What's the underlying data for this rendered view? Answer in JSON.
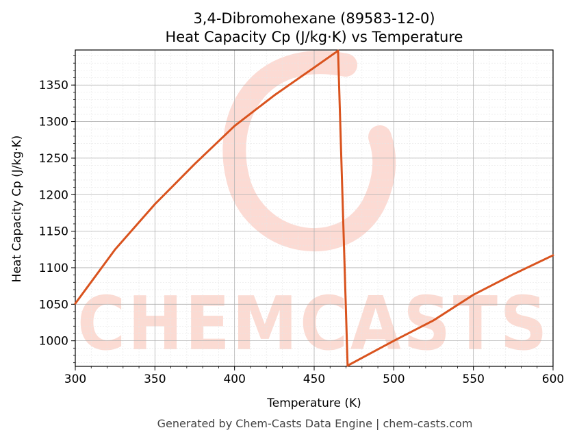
{
  "chart_data": {
    "type": "line",
    "title": "3,4-Dibromohexane (89583-12-0)",
    "subtitle": "Heat Capacity Cp (J/kg·K) vs Temperature",
    "xlabel": "Temperature (K)",
    "ylabel": "Heat Capacity Cp (J/kg·K)",
    "xlim": [
      300,
      600
    ],
    "ylim": [
      965,
      1398
    ],
    "x_ticks": [
      300,
      350,
      400,
      450,
      500,
      550,
      600
    ],
    "y_ticks": [
      1000,
      1050,
      1100,
      1150,
      1200,
      1250,
      1300,
      1350
    ],
    "grid": true,
    "series": [
      {
        "color": "#d9531e",
        "segments": [
          [
            [
              300,
              1051
            ],
            [
              325,
              1125
            ],
            [
              350,
              1187
            ],
            [
              375,
              1242
            ],
            [
              400,
              1294
            ],
            [
              425,
              1336
            ],
            [
              450,
              1374
            ],
            [
              465,
              1397
            ]
          ],
          [
            [
              465,
              1397
            ],
            [
              471,
              966
            ]
          ],
          [
            [
              471,
              966
            ],
            [
              500,
              1000
            ],
            [
              525,
              1028
            ],
            [
              550,
              1063
            ],
            [
              575,
              1091
            ],
            [
              600,
              1117
            ]
          ]
        ]
      }
    ]
  },
  "watermark": {
    "text": "CHEMCASTS",
    "color": "#fbd5cc"
  },
  "footer": "Generated by Chem-Casts Data Engine | chem-casts.com"
}
